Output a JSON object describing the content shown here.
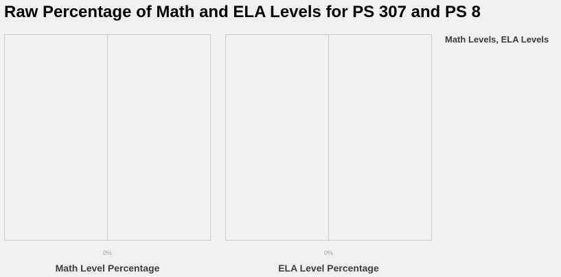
{
  "chart_data": {
    "type": "bar",
    "title": "Raw Percentage of Math and ELA Levels for PS 307 and PS 8",
    "legend": {
      "title": "Math Levels, ELA Levels",
      "position": "right"
    },
    "grid": true,
    "panels": [
      {
        "xlabel": "Math Level Percentage",
        "tick_labels": [
          "0%"
        ],
        "ticks": [
          0
        ],
        "series": []
      },
      {
        "xlabel": "ELA Level Percentage",
        "tick_labels": [
          "0%"
        ],
        "ticks": [
          0
        ],
        "series": []
      }
    ],
    "colors": {
      "background": "#f0f0f0",
      "grid": "#cbcbcb",
      "tick": "#a0a0a0",
      "axis_title": "#3c3c3c",
      "title": "#000000"
    }
  }
}
